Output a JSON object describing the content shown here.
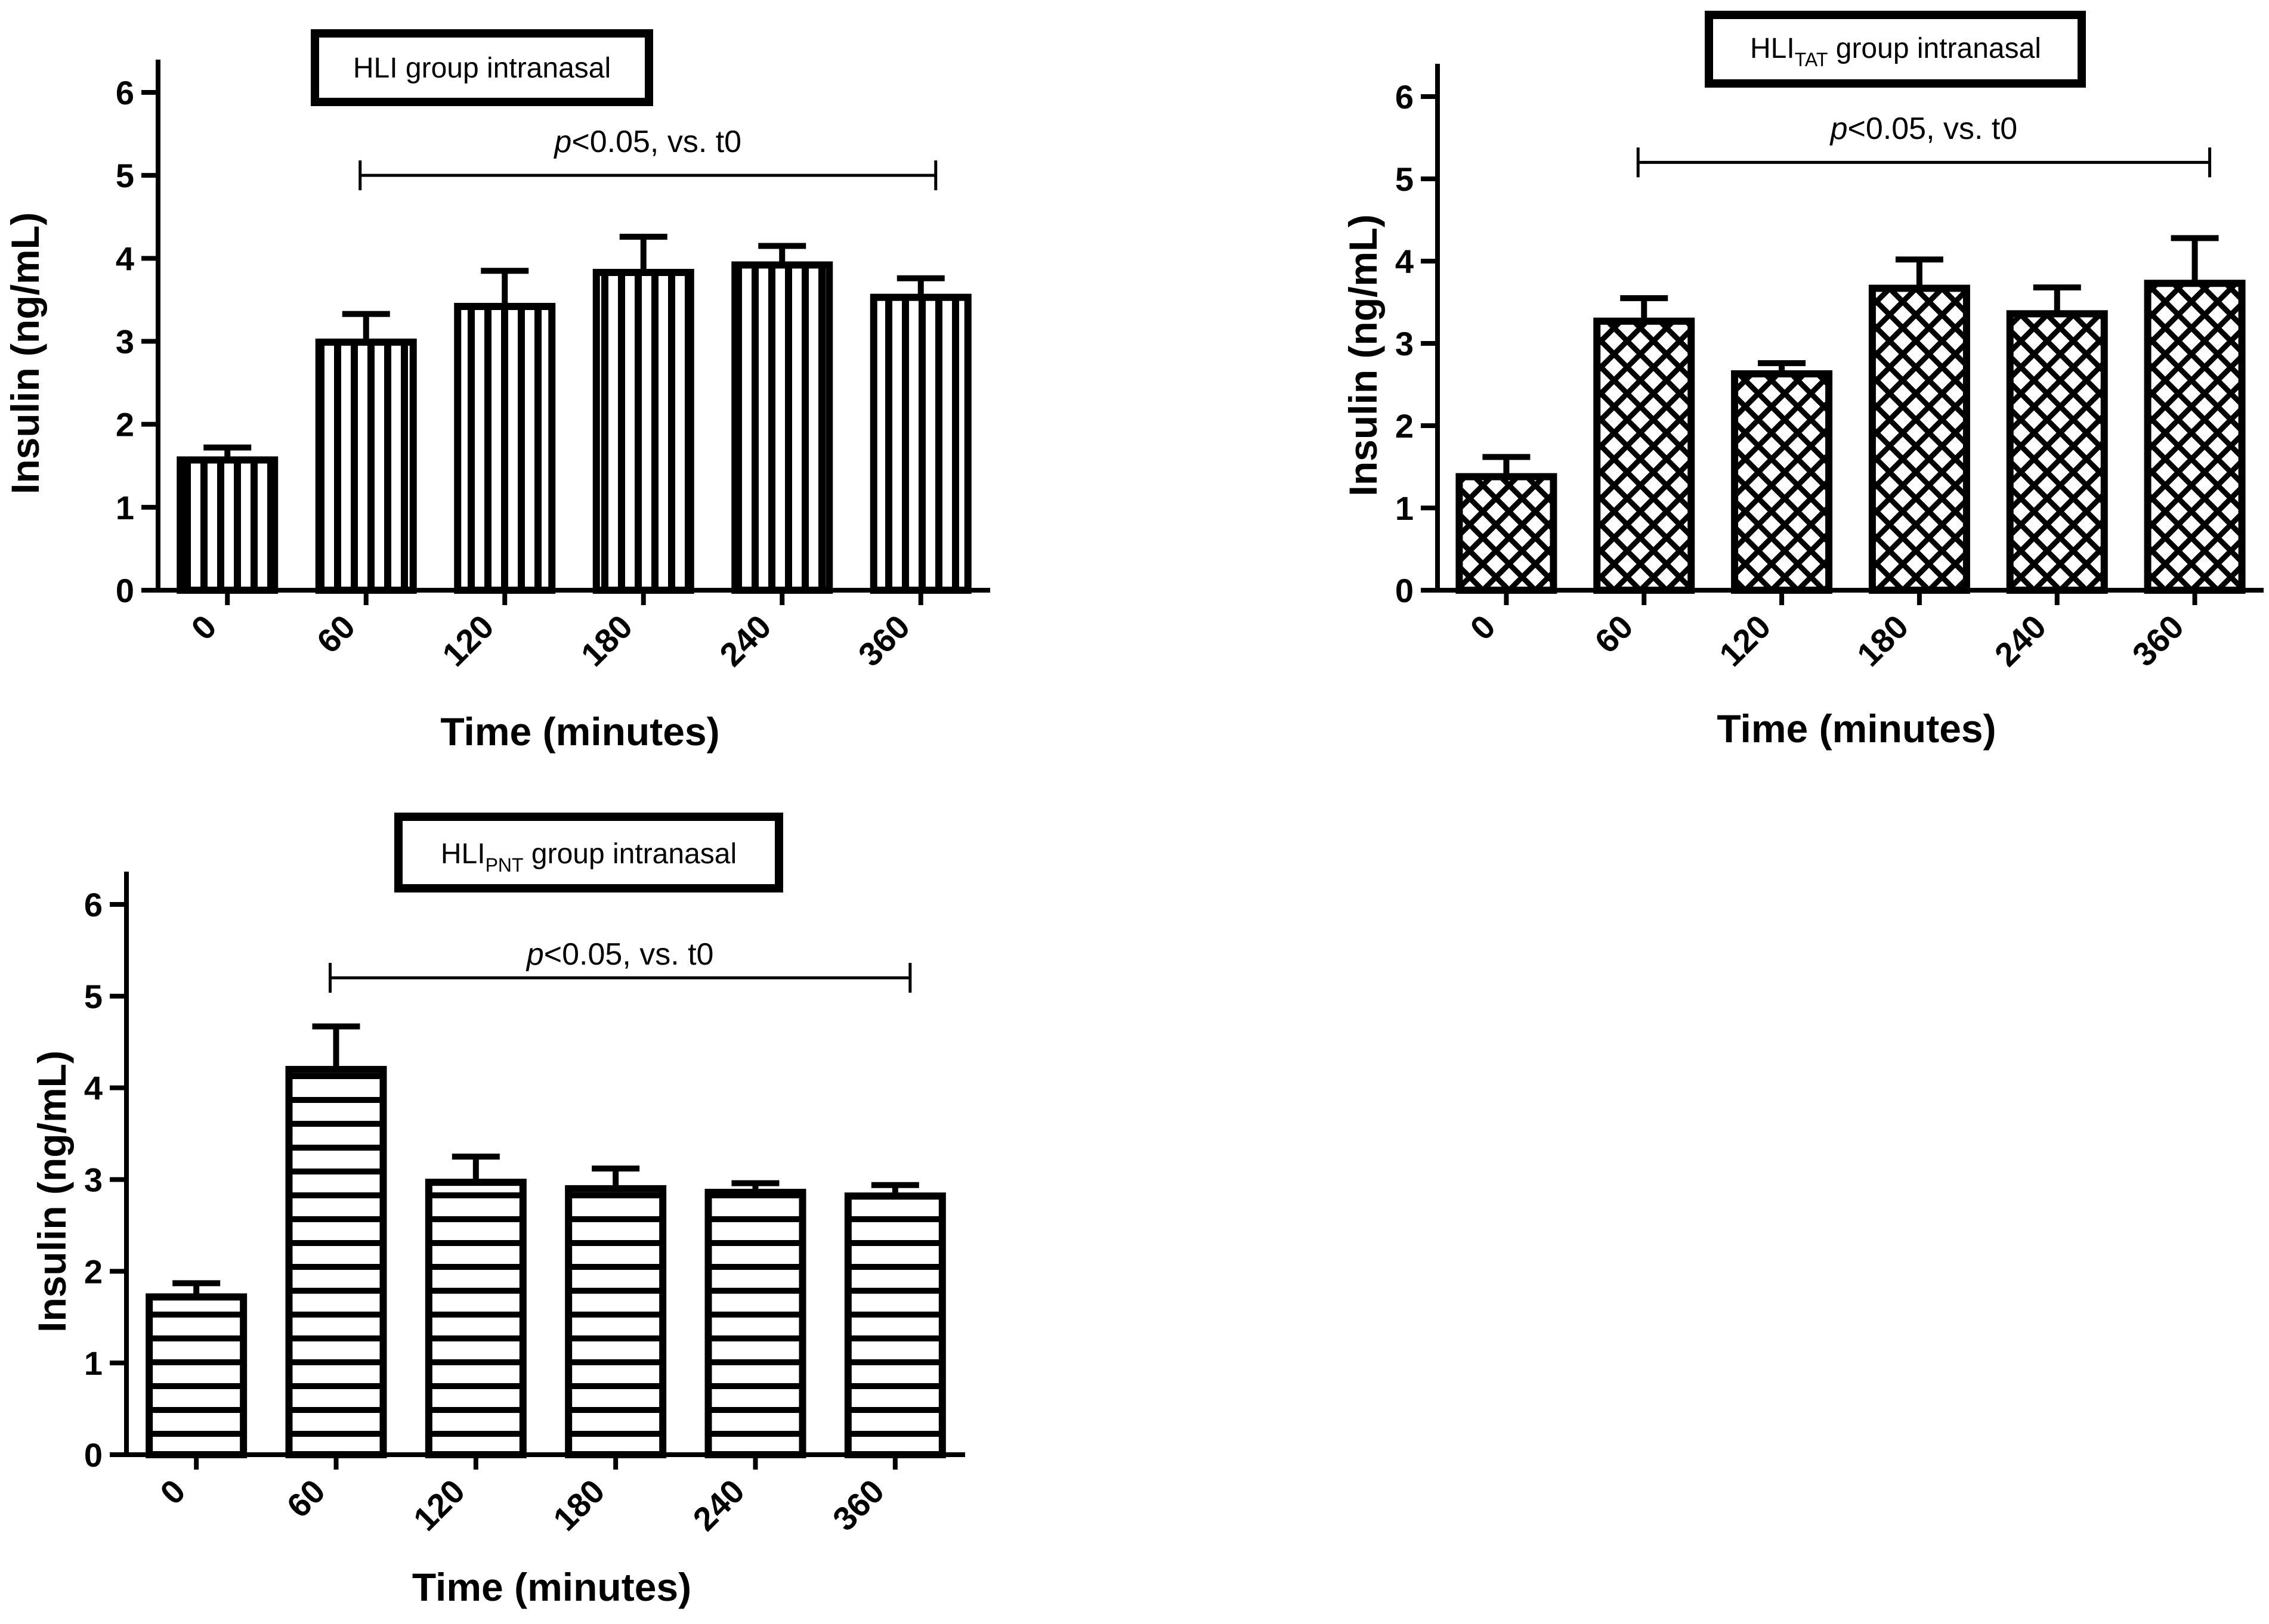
{
  "chart_data": [
    {
      "type": "bar",
      "title": {
        "main": "HLI",
        "sub": "",
        "rest": " group intranasal"
      },
      "categories": [
        "0",
        "60",
        "120",
        "180",
        "240",
        "360"
      ],
      "values": [
        1.57,
        2.99,
        3.42,
        3.83,
        3.92,
        3.53
      ],
      "errors": [
        0.15,
        0.34,
        0.43,
        0.43,
        0.23,
        0.23
      ],
      "xlabel": "Time (minutes)",
      "ylabel": "Insulin (ng/mL)",
      "ylim": [
        0,
        6
      ],
      "yticks": [
        "0",
        "1",
        "2",
        "3",
        "4",
        "5",
        "6"
      ],
      "pattern": "vertical-lines",
      "significance": {
        "italic": "p",
        "rest": "<0.05, vs. t0",
        "from_category": "60",
        "to_category": "360",
        "level": 5
      }
    },
    {
      "type": "bar",
      "title": {
        "main": "HLI",
        "sub": "TAT",
        "rest": " group intranasal"
      },
      "categories": [
        "0",
        "60",
        "120",
        "180",
        "240",
        "360"
      ],
      "values": [
        1.38,
        3.27,
        2.63,
        3.67,
        3.36,
        3.73
      ],
      "errors": [
        0.24,
        0.28,
        0.13,
        0.35,
        0.32,
        0.55
      ],
      "xlabel": "Time (minutes)",
      "ylabel": "Insulin (ng/mL)",
      "ylim": [
        0,
        6
      ],
      "yticks": [
        "0",
        "1",
        "2",
        "3",
        "4",
        "5",
        "6"
      ],
      "pattern": "crosshatch",
      "significance": {
        "italic": "p",
        "rest": "<0.05, vs. t0",
        "from_category": "60",
        "to_category": "360",
        "level": 5.2
      }
    },
    {
      "type": "bar",
      "title": {
        "main": "HLI",
        "sub": "PNT",
        "rest": " group  intranasal"
      },
      "categories": [
        "0",
        "60",
        "120",
        "180",
        "240",
        "360"
      ],
      "values": [
        1.72,
        4.2,
        2.97,
        2.9,
        2.86,
        2.82
      ],
      "errors": [
        0.15,
        0.47,
        0.28,
        0.22,
        0.1,
        0.12
      ],
      "xlabel": "Time (minutes)",
      "ylabel": "Insulin (ng/mL)",
      "ylim": [
        0,
        6
      ],
      "yticks": [
        "0",
        "1",
        "2",
        "3",
        "4",
        "5",
        "6"
      ],
      "pattern": "horizontal-lines",
      "significance": {
        "italic": "p",
        "rest": "<0.05, vs. t0",
        "from_category": "60",
        "to_category": "360",
        "level": 5.2
      }
    }
  ]
}
